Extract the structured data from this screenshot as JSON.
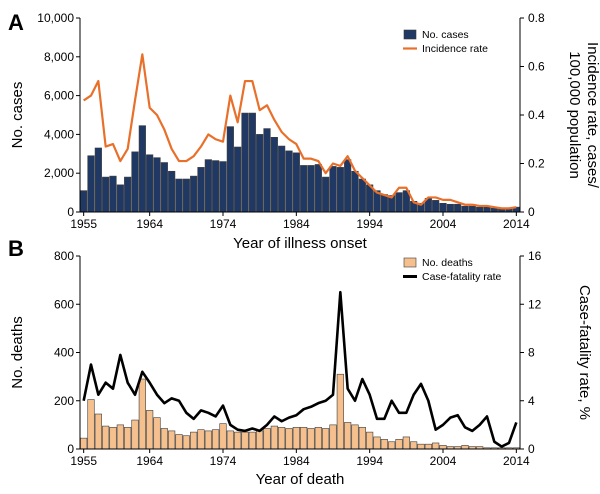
{
  "chart_data": [
    {
      "type": "bar",
      "panel_label": "A",
      "xlabel": "Year of illness onset",
      "ylabel": "No. cases",
      "ylabel_right": "Incidence rate, cases/ 100,000 population",
      "x_start": 1955,
      "x_end": 2014,
      "x_ticks": [
        1955,
        1964,
        1974,
        1984,
        1994,
        2004,
        2014
      ],
      "ylim": [
        0,
        10000
      ],
      "y_ticks": [
        "0",
        "2,000",
        "4,000",
        "6,000",
        "8,000",
        "10,000"
      ],
      "ylim_right": [
        0,
        0.8
      ],
      "y_ticks_right": [
        "0",
        "0.2",
        "0.4",
        "0.6",
        "0.8"
      ],
      "legend_position": "top-right",
      "series": [
        {
          "name": "No. cases",
          "kind": "bar",
          "color": "#1f3864",
          "values": [
            1100,
            2900,
            3300,
            1800,
            1850,
            1400,
            1800,
            3100,
            4450,
            2950,
            2800,
            2550,
            2100,
            1700,
            1700,
            1850,
            2300,
            2700,
            2650,
            2600,
            4400,
            3350,
            5100,
            5100,
            4000,
            4300,
            3850,
            3400,
            3150,
            3050,
            2400,
            2400,
            2450,
            1800,
            2350,
            2300,
            2700,
            2100,
            1700,
            1400,
            1100,
            900,
            850,
            1000,
            1100,
            550,
            450,
            700,
            600,
            450,
            400,
            400,
            300,
            300,
            250,
            250,
            200,
            150,
            200,
            250
          ]
        },
        {
          "name": "Incidence rate",
          "kind": "line",
          "axis": "right",
          "color": "#e8702a",
          "values": [
            0.46,
            0.48,
            0.54,
            0.27,
            0.28,
            0.21,
            0.26,
            0.46,
            0.65,
            0.43,
            0.4,
            0.34,
            0.26,
            0.21,
            0.21,
            0.23,
            0.27,
            0.32,
            0.3,
            0.29,
            0.48,
            0.37,
            0.54,
            0.54,
            0.42,
            0.44,
            0.38,
            0.33,
            0.3,
            0.28,
            0.22,
            0.22,
            0.21,
            0.16,
            0.2,
            0.19,
            0.23,
            0.17,
            0.14,
            0.11,
            0.08,
            0.07,
            0.06,
            0.1,
            0.1,
            0.04,
            0.03,
            0.06,
            0.06,
            0.05,
            0.05,
            0.04,
            0.03,
            0.03,
            0.025,
            0.025,
            0.02,
            0.015,
            0.015,
            0.02
          ]
        }
      ]
    },
    {
      "type": "bar",
      "panel_label": "B",
      "xlabel": "Year of death",
      "ylabel": "No. deaths",
      "ylabel_right": "Case-fatality rate, %",
      "x_start": 1955,
      "x_end": 2014,
      "x_ticks": [
        1955,
        1964,
        1974,
        1984,
        1994,
        2004,
        2014
      ],
      "ylim": [
        0,
        800
      ],
      "y_ticks": [
        "0",
        "200",
        "400",
        "600",
        "800"
      ],
      "ylim_right": [
        0,
        16
      ],
      "y_ticks_right": [
        "0",
        "4",
        "8",
        "12",
        "16"
      ],
      "legend_position": "top-right",
      "series": [
        {
          "name": "No. deaths",
          "kind": "bar",
          "color": "#f6c08e",
          "values": [
            45,
            205,
            145,
            95,
            90,
            100,
            90,
            120,
            290,
            160,
            130,
            85,
            75,
            60,
            55,
            70,
            80,
            75,
            80,
            105,
            75,
            70,
            70,
            70,
            75,
            85,
            95,
            90,
            85,
            90,
            90,
            85,
            90,
            85,
            100,
            310,
            110,
            100,
            90,
            70,
            50,
            40,
            30,
            40,
            50,
            30,
            20,
            20,
            25,
            15,
            10,
            10,
            15,
            10,
            10,
            5,
            5,
            5,
            5,
            5
          ]
        },
        {
          "name": "Case-fatality rate",
          "kind": "line",
          "axis": "right",
          "color": "#000000",
          "values": [
            4.0,
            7.0,
            4.5,
            5.5,
            5.0,
            7.8,
            5.5,
            4.5,
            6.4,
            5.5,
            4.5,
            3.8,
            4.2,
            4.0,
            3.0,
            2.5,
            3.2,
            3.0,
            2.7,
            3.6,
            2.0,
            1.6,
            1.5,
            1.7,
            1.5,
            2.0,
            2.7,
            2.3,
            2.6,
            2.8,
            3.3,
            3.5,
            3.8,
            4.0,
            4.5,
            13.0,
            5.0,
            4.0,
            5.8,
            4.5,
            2.5,
            2.5,
            4.0,
            3.0,
            3.0,
            4.5,
            5.4,
            4.0,
            1.6,
            2.0,
            2.6,
            2.8,
            1.8,
            1.5,
            2.0,
            2.7,
            0.6,
            0.2,
            0.5,
            2.2
          ]
        }
      ]
    }
  ]
}
